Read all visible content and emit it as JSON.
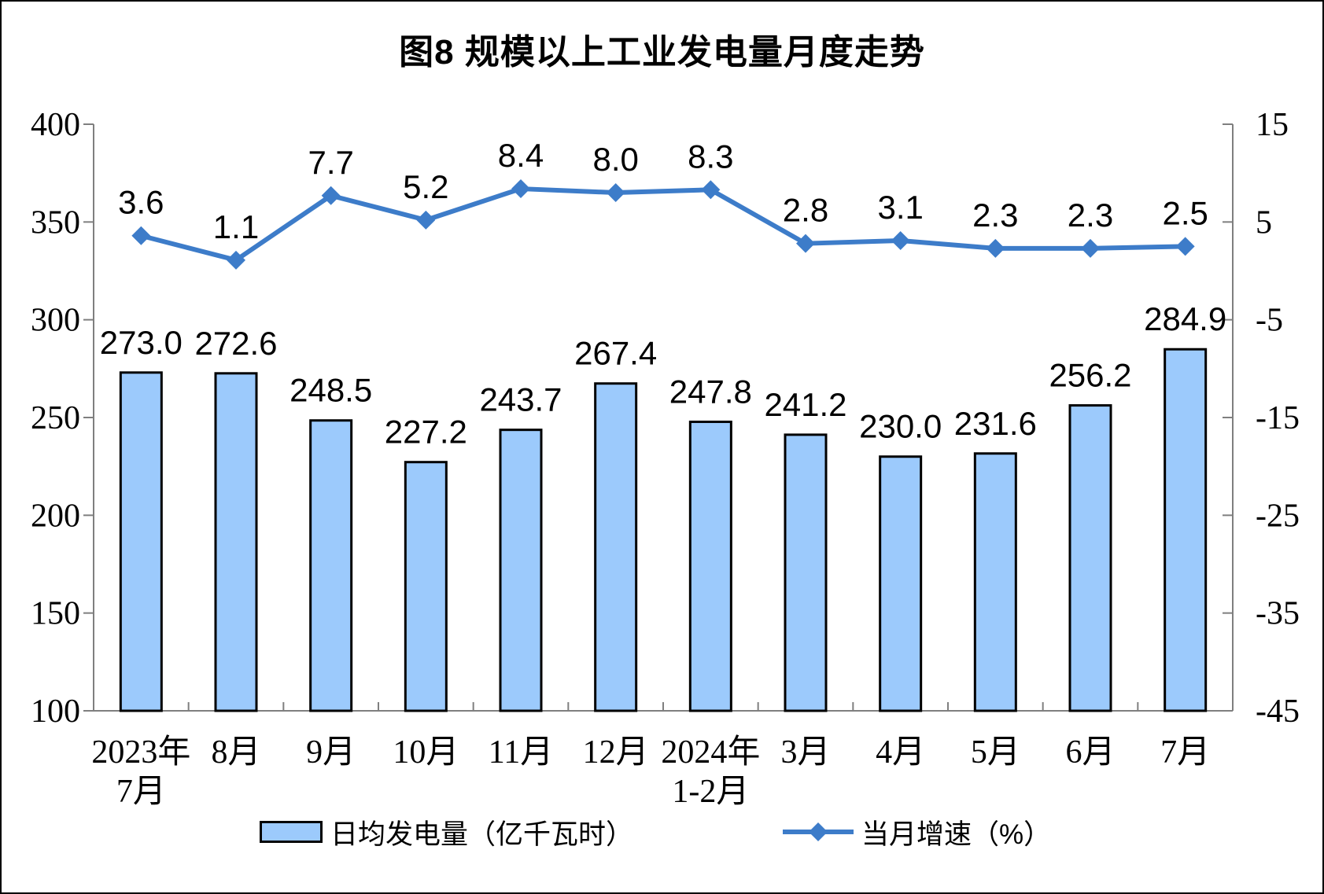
{
  "title": "图8 规模以上工业发电量月度走势",
  "chart_data": {
    "type": "combo",
    "title": "图8 规模以上工业发电量月度走势",
    "categories": [
      [
        "2023年",
        "7月"
      ],
      [
        "8月"
      ],
      [
        "9月"
      ],
      [
        "10月"
      ],
      [
        "11月"
      ],
      [
        "12月"
      ],
      [
        "2024年",
        "1-2月"
      ],
      [
        "3月"
      ],
      [
        "4月"
      ],
      [
        "5月"
      ],
      [
        "6月"
      ],
      [
        "7月"
      ]
    ],
    "series": [
      {
        "name": "日均发电量（亿千瓦时）",
        "type": "bar",
        "axis": "left",
        "values": [
          273.0,
          272.6,
          248.5,
          227.2,
          243.7,
          267.4,
          247.8,
          241.2,
          230.0,
          231.6,
          256.2,
          284.9
        ]
      },
      {
        "name": "当月增速（%）",
        "type": "line",
        "axis": "right",
        "values": [
          3.6,
          1.1,
          7.7,
          5.2,
          8.4,
          8.0,
          8.3,
          2.8,
          3.1,
          2.3,
          2.3,
          2.5
        ]
      }
    ],
    "left_axis": {
      "min": 100,
      "max": 400,
      "ticks": [
        400,
        350,
        300,
        250,
        200,
        150,
        100
      ]
    },
    "right_axis": {
      "min": -45,
      "max": 15,
      "ticks": [
        15,
        5,
        -5,
        -15,
        -25,
        -35,
        -45
      ]
    },
    "grid": false,
    "legend_position": "bottom",
    "data_labels_decimals": 1,
    "colors": {
      "bar_fill": "#9CCAFC",
      "bar_border": "#000000",
      "line": "#3D7CC9",
      "axis": "#7F7F7F",
      "text": "#000000"
    }
  }
}
